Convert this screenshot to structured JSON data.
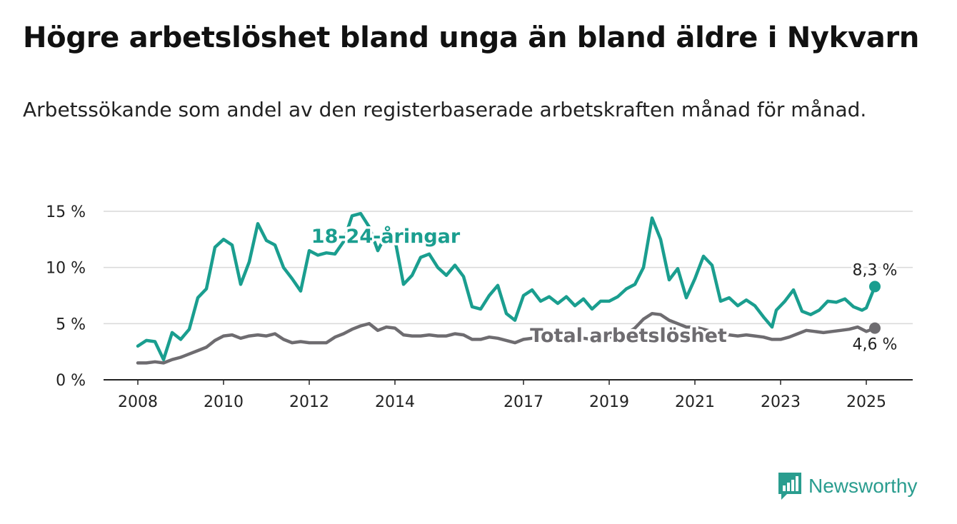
{
  "title": "Högre arbetslöshet bland unga än bland äldre i Nykvarn",
  "subtitle": "Arbetssökande som andel av den registerbaserade arbetskraften månad för månad.",
  "brand": {
    "name": "Newsworthy",
    "icon": "newsworthy-logo-icon",
    "color": "#2a9d8f"
  },
  "chart_data": {
    "type": "line",
    "title": "Högre arbetslöshet bland unga än bland äldre i Nykvarn",
    "xlabel": "",
    "ylabel": "",
    "ylim": [
      0,
      15
    ],
    "xlim": [
      2008,
      2026.4
    ],
    "yticks": [
      0,
      5,
      10,
      15
    ],
    "ytick_labels": [
      "0 %",
      "5 %",
      "10 %",
      "15 %"
    ],
    "xticks": [
      2008,
      2010,
      2012,
      2014,
      2017,
      2019,
      2021,
      2023,
      2025
    ],
    "xtick_labels": [
      "2008",
      "2010",
      "2012",
      "2014",
      "2017",
      "2019",
      "2021",
      "2023",
      "2025"
    ],
    "grid": "horizontal",
    "series": [
      {
        "name": "18-24-åringar",
        "color": "#1a9e8f",
        "end_label": "8,3 %",
        "points": [
          [
            2008.0,
            3.0
          ],
          [
            2008.2,
            3.5
          ],
          [
            2008.4,
            3.4
          ],
          [
            2008.6,
            1.8
          ],
          [
            2008.8,
            4.2
          ],
          [
            2009.0,
            3.6
          ],
          [
            2009.2,
            4.5
          ],
          [
            2009.4,
            7.3
          ],
          [
            2009.6,
            8.1
          ],
          [
            2009.8,
            11.8
          ],
          [
            2010.0,
            12.5
          ],
          [
            2010.2,
            12.0
          ],
          [
            2010.4,
            8.5
          ],
          [
            2010.6,
            10.5
          ],
          [
            2010.8,
            13.9
          ],
          [
            2011.0,
            12.4
          ],
          [
            2011.2,
            12.0
          ],
          [
            2011.4,
            10.0
          ],
          [
            2011.6,
            9.0
          ],
          [
            2011.8,
            7.9
          ],
          [
            2012.0,
            11.5
          ],
          [
            2012.2,
            11.1
          ],
          [
            2012.4,
            11.3
          ],
          [
            2012.6,
            11.2
          ],
          [
            2012.8,
            12.3
          ],
          [
            2013.0,
            14.6
          ],
          [
            2013.2,
            14.8
          ],
          [
            2013.4,
            13.6
          ],
          [
            2013.6,
            11.5
          ],
          [
            2013.8,
            13.0
          ],
          [
            2014.0,
            12.5
          ],
          [
            2014.2,
            8.5
          ],
          [
            2014.4,
            9.3
          ],
          [
            2014.6,
            10.9
          ],
          [
            2014.8,
            11.2
          ],
          [
            2015.0,
            10.0
          ],
          [
            2015.2,
            9.3
          ],
          [
            2015.4,
            10.2
          ],
          [
            2015.6,
            9.2
          ],
          [
            2015.8,
            6.5
          ],
          [
            2016.0,
            6.3
          ],
          [
            2016.2,
            7.5
          ],
          [
            2016.4,
            8.4
          ],
          [
            2016.6,
            5.9
          ],
          [
            2016.8,
            5.3
          ],
          [
            2017.0,
            7.5
          ],
          [
            2017.2,
            8.0
          ],
          [
            2017.4,
            7.0
          ],
          [
            2017.6,
            7.4
          ],
          [
            2017.8,
            6.8
          ],
          [
            2018.0,
            7.4
          ],
          [
            2018.2,
            6.6
          ],
          [
            2018.4,
            7.2
          ],
          [
            2018.6,
            6.3
          ],
          [
            2018.8,
            7.0
          ],
          [
            2019.0,
            7.0
          ],
          [
            2019.2,
            7.4
          ],
          [
            2019.4,
            8.1
          ],
          [
            2019.6,
            8.5
          ],
          [
            2019.8,
            10.0
          ],
          [
            2020.0,
            14.4
          ],
          [
            2020.2,
            12.5
          ],
          [
            2020.4,
            8.9
          ],
          [
            2020.6,
            9.9
          ],
          [
            2020.8,
            7.3
          ],
          [
            2021.0,
            9.0
          ],
          [
            2021.2,
            11.0
          ],
          [
            2021.4,
            10.2
          ],
          [
            2021.6,
            7.0
          ],
          [
            2021.8,
            7.3
          ],
          [
            2022.0,
            6.6
          ],
          [
            2022.2,
            7.1
          ],
          [
            2022.4,
            6.6
          ],
          [
            2022.6,
            5.6
          ],
          [
            2022.8,
            4.7
          ],
          [
            2022.9,
            6.2
          ],
          [
            2023.1,
            7.0
          ],
          [
            2023.3,
            8.0
          ],
          [
            2023.5,
            6.1
          ],
          [
            2023.7,
            5.8
          ],
          [
            2023.9,
            6.2
          ],
          [
            2024.1,
            7.0
          ],
          [
            2024.3,
            6.9
          ],
          [
            2024.5,
            7.2
          ],
          [
            2024.7,
            6.5
          ],
          [
            2024.9,
            6.2
          ],
          [
            2025.0,
            6.4
          ],
          [
            2025.2,
            8.3
          ]
        ]
      },
      {
        "name": "Total arbetslöshet",
        "color": "#6e6c70",
        "end_label": "4,6 %",
        "points": [
          [
            2008.0,
            1.5
          ],
          [
            2008.2,
            1.5
          ],
          [
            2008.4,
            1.6
          ],
          [
            2008.6,
            1.5
          ],
          [
            2008.8,
            1.8
          ],
          [
            2009.0,
            2.0
          ],
          [
            2009.2,
            2.3
          ],
          [
            2009.4,
            2.6
          ],
          [
            2009.6,
            2.9
          ],
          [
            2009.8,
            3.5
          ],
          [
            2010.0,
            3.9
          ],
          [
            2010.2,
            4.0
          ],
          [
            2010.4,
            3.7
          ],
          [
            2010.6,
            3.9
          ],
          [
            2010.8,
            4.0
          ],
          [
            2011.0,
            3.9
          ],
          [
            2011.2,
            4.1
          ],
          [
            2011.4,
            3.6
          ],
          [
            2011.6,
            3.3
          ],
          [
            2011.8,
            3.4
          ],
          [
            2012.0,
            3.3
          ],
          [
            2012.2,
            3.3
          ],
          [
            2012.4,
            3.3
          ],
          [
            2012.6,
            3.8
          ],
          [
            2012.8,
            4.1
          ],
          [
            2013.0,
            4.5
          ],
          [
            2013.2,
            4.8
          ],
          [
            2013.4,
            5.0
          ],
          [
            2013.6,
            4.4
          ],
          [
            2013.8,
            4.7
          ],
          [
            2014.0,
            4.6
          ],
          [
            2014.2,
            4.0
          ],
          [
            2014.4,
            3.9
          ],
          [
            2014.6,
            3.9
          ],
          [
            2014.8,
            4.0
          ],
          [
            2015.0,
            3.9
          ],
          [
            2015.2,
            3.9
          ],
          [
            2015.4,
            4.1
          ],
          [
            2015.6,
            4.0
          ],
          [
            2015.8,
            3.6
          ],
          [
            2016.0,
            3.6
          ],
          [
            2016.2,
            3.8
          ],
          [
            2016.4,
            3.7
          ],
          [
            2016.6,
            3.5
          ],
          [
            2016.8,
            3.3
          ],
          [
            2017.0,
            3.6
          ],
          [
            2017.2,
            3.7
          ],
          [
            2017.4,
            3.7
          ],
          [
            2017.6,
            3.6
          ],
          [
            2017.8,
            3.6
          ],
          [
            2018.0,
            3.7
          ],
          [
            2018.2,
            3.6
          ],
          [
            2018.4,
            3.7
          ],
          [
            2018.6,
            3.6
          ],
          [
            2018.8,
            3.6
          ],
          [
            2019.0,
            3.8
          ],
          [
            2019.2,
            3.8
          ],
          [
            2019.4,
            4.1
          ],
          [
            2019.6,
            4.6
          ],
          [
            2019.8,
            5.4
          ],
          [
            2020.0,
            5.9
          ],
          [
            2020.2,
            5.8
          ],
          [
            2020.4,
            5.3
          ],
          [
            2020.6,
            5.0
          ],
          [
            2020.8,
            4.7
          ],
          [
            2021.0,
            4.7
          ],
          [
            2021.2,
            4.5
          ],
          [
            2021.4,
            4.3
          ],
          [
            2021.6,
            4.1
          ],
          [
            2021.8,
            4.0
          ],
          [
            2022.0,
            3.9
          ],
          [
            2022.2,
            4.0
          ],
          [
            2022.4,
            3.9
          ],
          [
            2022.6,
            3.8
          ],
          [
            2022.8,
            3.6
          ],
          [
            2023.0,
            3.6
          ],
          [
            2023.2,
            3.8
          ],
          [
            2023.4,
            4.1
          ],
          [
            2023.6,
            4.4
          ],
          [
            2023.8,
            4.3
          ],
          [
            2024.0,
            4.2
          ],
          [
            2024.2,
            4.3
          ],
          [
            2024.4,
            4.4
          ],
          [
            2024.6,
            4.5
          ],
          [
            2024.8,
            4.7
          ],
          [
            2025.0,
            4.3
          ],
          [
            2025.2,
            4.6
          ]
        ]
      }
    ]
  }
}
